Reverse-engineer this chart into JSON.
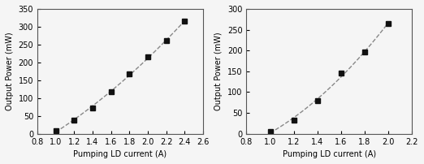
{
  "left": {
    "x": [
      1.0,
      1.2,
      1.4,
      1.6,
      1.8,
      2.0,
      2.2,
      2.4
    ],
    "y": [
      8,
      37,
      73,
      118,
      168,
      215,
      260,
      315
    ],
    "xlim": [
      0.8,
      2.6
    ],
    "ylim": [
      0,
      350
    ],
    "xticks": [
      0.8,
      1.0,
      1.2,
      1.4,
      1.6,
      1.8,
      2.0,
      2.2,
      2.4,
      2.6
    ],
    "yticks": [
      0,
      50,
      100,
      150,
      200,
      250,
      300,
      350
    ],
    "xlabel": "Pumping LD current (A)",
    "ylabel": "Output Power (mW)"
  },
  "right": {
    "x": [
      1.0,
      1.2,
      1.4,
      1.6,
      1.8,
      2.0
    ],
    "y": [
      6,
      32,
      80,
      145,
      197,
      265
    ],
    "xlim": [
      0.8,
      2.2
    ],
    "ylim": [
      0,
      300
    ],
    "xticks": [
      0.8,
      1.0,
      1.2,
      1.4,
      1.6,
      1.8,
      2.0,
      2.2
    ],
    "yticks": [
      0,
      50,
      100,
      150,
      200,
      250,
      300
    ],
    "xlabel": "Pumping LD current (A)",
    "ylabel": "Output Power (mW)"
  },
  "line_color": "#888888",
  "marker_color": "#111111",
  "bg_color": "#f5f5f5",
  "fontsize_label": 7,
  "fontsize_tick": 7
}
